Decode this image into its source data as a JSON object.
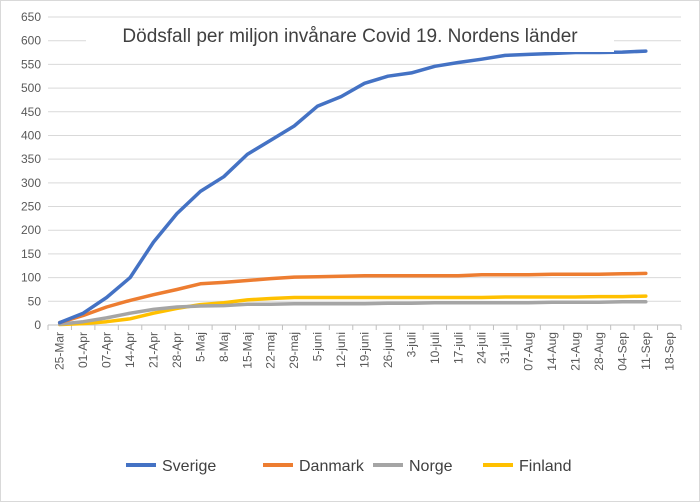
{
  "chart_data": {
    "type": "line",
    "title": "Dödsfall per miljon invånare Covid 19. Nordens länder",
    "xlabel": "",
    "ylabel": "",
    "categories": [
      "25-Mar",
      "01-Apr",
      "07-Apr",
      "14-Apr",
      "21-Apr",
      "28-Apr",
      "5-Maj",
      "8-Maj",
      "15-Maj",
      "22-maj",
      "29-maj",
      "5-juni",
      "12-juni",
      "19-juni",
      "26-juni",
      "3-juli",
      "10-juli",
      "17-juli",
      "24-juli",
      "31-juli",
      "07-Aug",
      "14-Aug",
      "21-Aug",
      "28-Aug",
      "04-Sep",
      "11-Sep",
      "18-Sep"
    ],
    "ylim": [
      0,
      650
    ],
    "yticks": [
      0,
      50,
      100,
      150,
      200,
      250,
      300,
      350,
      400,
      450,
      500,
      550,
      600,
      650
    ],
    "grid": true,
    "legend_position": "bottom",
    "series": [
      {
        "name": "Sverige",
        "color": "#4472C4",
        "values": [
          5,
          25,
          58,
          100,
          175,
          235,
          282,
          313,
          360,
          390,
          420,
          462,
          482,
          510,
          525,
          532,
          546,
          554,
          561,
          569,
          571,
          573,
          575,
          575,
          576,
          578,
          null
        ]
      },
      {
        "name": "Danmark",
        "color": "#ED7D31",
        "values": [
          5,
          20,
          38,
          52,
          64,
          75,
          87,
          90,
          94,
          98,
          101,
          102,
          103,
          104,
          104,
          104,
          104,
          104,
          106,
          106,
          106,
          107,
          107,
          107,
          108,
          109,
          null
        ]
      },
      {
        "name": "Norge",
        "color": "#A5A5A5",
        "values": [
          2,
          7,
          15,
          25,
          33,
          38,
          40,
          41,
          44,
          44,
          45,
          45,
          45,
          45,
          46,
          46,
          47,
          47,
          47,
          47,
          47,
          48,
          48,
          48,
          49,
          49,
          null
        ]
      },
      {
        "name": "Finland",
        "color": "#FFC000",
        "values": [
          1,
          3,
          7,
          13,
          25,
          35,
          43,
          47,
          53,
          56,
          58,
          58,
          58,
          58,
          58,
          58,
          58,
          58,
          58,
          59,
          59,
          59,
          59,
          60,
          60,
          61,
          null
        ]
      }
    ]
  }
}
